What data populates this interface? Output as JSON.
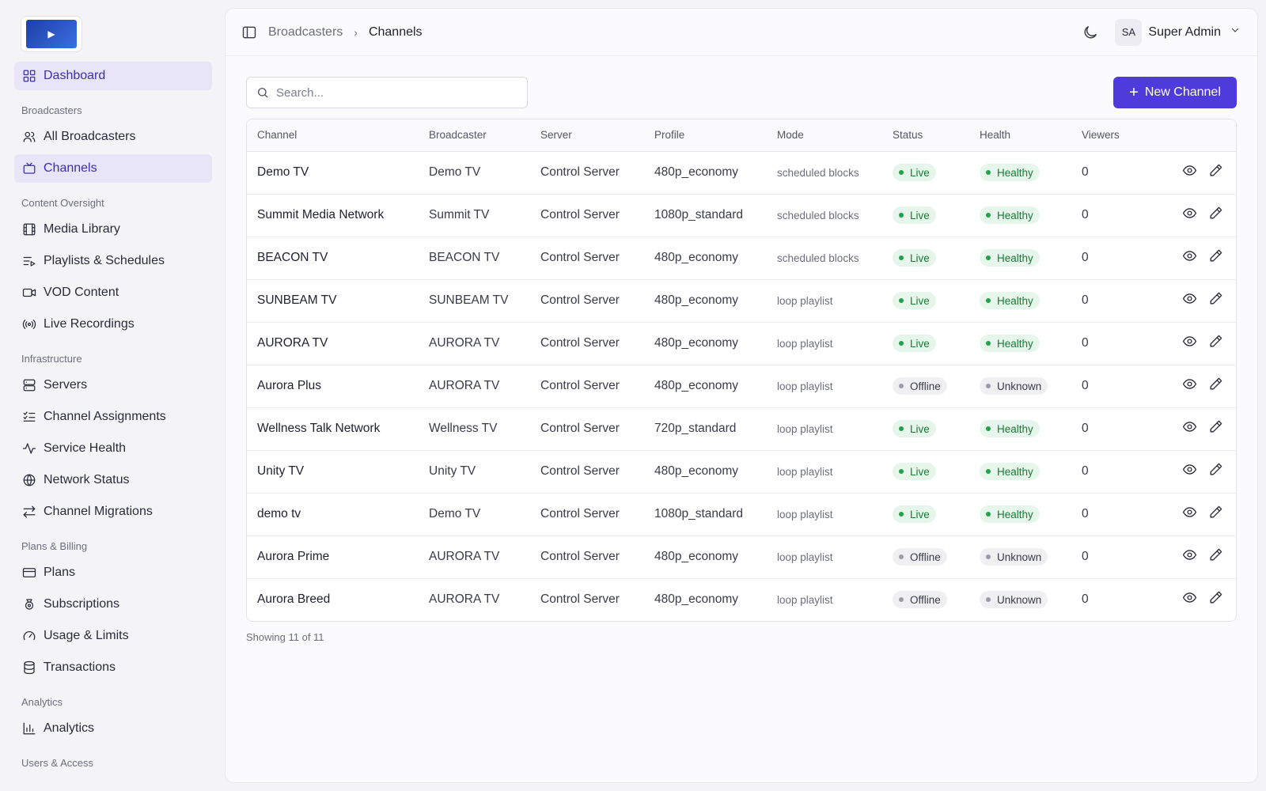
{
  "sidebar": {
    "top_item": {
      "label": "Dashboard",
      "icon": "grid-icon"
    },
    "sections": [
      {
        "label": "Broadcasters",
        "items": [
          {
            "label": "All Broadcasters",
            "icon": "users-icon"
          },
          {
            "label": "Channels",
            "icon": "tv-icon",
            "active": true
          }
        ]
      },
      {
        "label": "Content Oversight",
        "items": [
          {
            "label": "Media Library",
            "icon": "film-icon"
          },
          {
            "label": "Playlists & Schedules",
            "icon": "playlist-icon"
          },
          {
            "label": "VOD Content",
            "icon": "video-icon"
          },
          {
            "label": "Live Recordings",
            "icon": "broadcast-icon"
          }
        ]
      },
      {
        "label": "Infrastructure",
        "items": [
          {
            "label": "Servers",
            "icon": "server-icon"
          },
          {
            "label": "Channel Assignments",
            "icon": "list-checks-icon"
          },
          {
            "label": "Service Health",
            "icon": "activity-icon"
          },
          {
            "label": "Network Status",
            "icon": "globe-icon"
          },
          {
            "label": "Channel Migrations",
            "icon": "arrows-icon"
          }
        ]
      },
      {
        "label": "Plans & Billing",
        "items": [
          {
            "label": "Plans",
            "icon": "card-icon"
          },
          {
            "label": "Subscriptions",
            "icon": "subscription-icon"
          },
          {
            "label": "Usage & Limits",
            "icon": "gauge-icon"
          },
          {
            "label": "Transactions",
            "icon": "database-icon"
          }
        ]
      },
      {
        "label": "Analytics",
        "items": [
          {
            "label": "Analytics",
            "icon": "bar-chart-icon"
          }
        ]
      }
    ],
    "last_section_label": "Users & Access"
  },
  "header": {
    "breadcrumb": [
      "Broadcasters",
      "Channels"
    ],
    "avatar_initials": "SA",
    "user_name": "Super Admin"
  },
  "toolbar": {
    "search_placeholder": "Search...",
    "new_button_label": "New Channel"
  },
  "table": {
    "columns": [
      "Channel",
      "Broadcaster",
      "Server",
      "Profile",
      "Mode",
      "Status",
      "Health",
      "Viewers"
    ],
    "rows": [
      {
        "channel": "Demo TV",
        "broadcaster": "Demo TV",
        "server": "Control Server",
        "profile": "480p_economy",
        "mode": "scheduled blocks",
        "status": "Live",
        "health": "Healthy",
        "viewers": "0"
      },
      {
        "channel": "Summit Media Network",
        "broadcaster": "Summit TV",
        "server": "Control Server",
        "profile": "1080p_standard",
        "mode": "scheduled blocks",
        "status": "Live",
        "health": "Healthy",
        "viewers": "0"
      },
      {
        "channel": "BEACON TV",
        "broadcaster": "BEACON TV",
        "server": "Control Server",
        "profile": "480p_economy",
        "mode": "scheduled blocks",
        "status": "Live",
        "health": "Healthy",
        "viewers": "0"
      },
      {
        "channel": "SUNBEAM TV",
        "broadcaster": "SUNBEAM TV",
        "server": "Control Server",
        "profile": "480p_economy",
        "mode": "loop playlist",
        "status": "Live",
        "health": "Healthy",
        "viewers": "0"
      },
      {
        "channel": "AURORA TV",
        "broadcaster": "AURORA TV",
        "server": "Control Server",
        "profile": "480p_economy",
        "mode": "loop playlist",
        "status": "Live",
        "health": "Healthy",
        "viewers": "0"
      },
      {
        "channel": "Aurora Plus",
        "broadcaster": "AURORA TV",
        "server": "Control Server",
        "profile": "480p_economy",
        "mode": "loop playlist",
        "status": "Offline",
        "health": "Unknown",
        "viewers": "0"
      },
      {
        "channel": "Wellness Talk Network",
        "broadcaster": "Wellness TV",
        "server": "Control Server",
        "profile": "720p_standard",
        "mode": "loop playlist",
        "status": "Live",
        "health": "Healthy",
        "viewers": "0"
      },
      {
        "channel": "Unity TV",
        "broadcaster": "Unity TV",
        "server": "Control Server",
        "profile": "480p_economy",
        "mode": "loop playlist",
        "status": "Live",
        "health": "Healthy",
        "viewers": "0"
      },
      {
        "channel": "demo tv",
        "broadcaster": "Demo TV",
        "server": "Control Server",
        "profile": "1080p_standard",
        "mode": "loop playlist",
        "status": "Live",
        "health": "Healthy",
        "viewers": "0"
      },
      {
        "channel": "Aurora Prime",
        "broadcaster": "AURORA TV",
        "server": "Control Server",
        "profile": "480p_economy",
        "mode": "loop playlist",
        "status": "Offline",
        "health": "Unknown",
        "viewers": "0"
      },
      {
        "channel": "Aurora Breed",
        "broadcaster": "AURORA TV",
        "server": "Control Server",
        "profile": "480p_economy",
        "mode": "loop playlist",
        "status": "Offline",
        "health": "Unknown",
        "viewers": "0"
      }
    ]
  },
  "footer_note": "Showing 11 of 11",
  "colors": {
    "accent": "#4f3bdc",
    "active_nav_bg": "#e7e5f7",
    "live_green": "#22a04b",
    "offline_gray": "#9a9ba8"
  }
}
